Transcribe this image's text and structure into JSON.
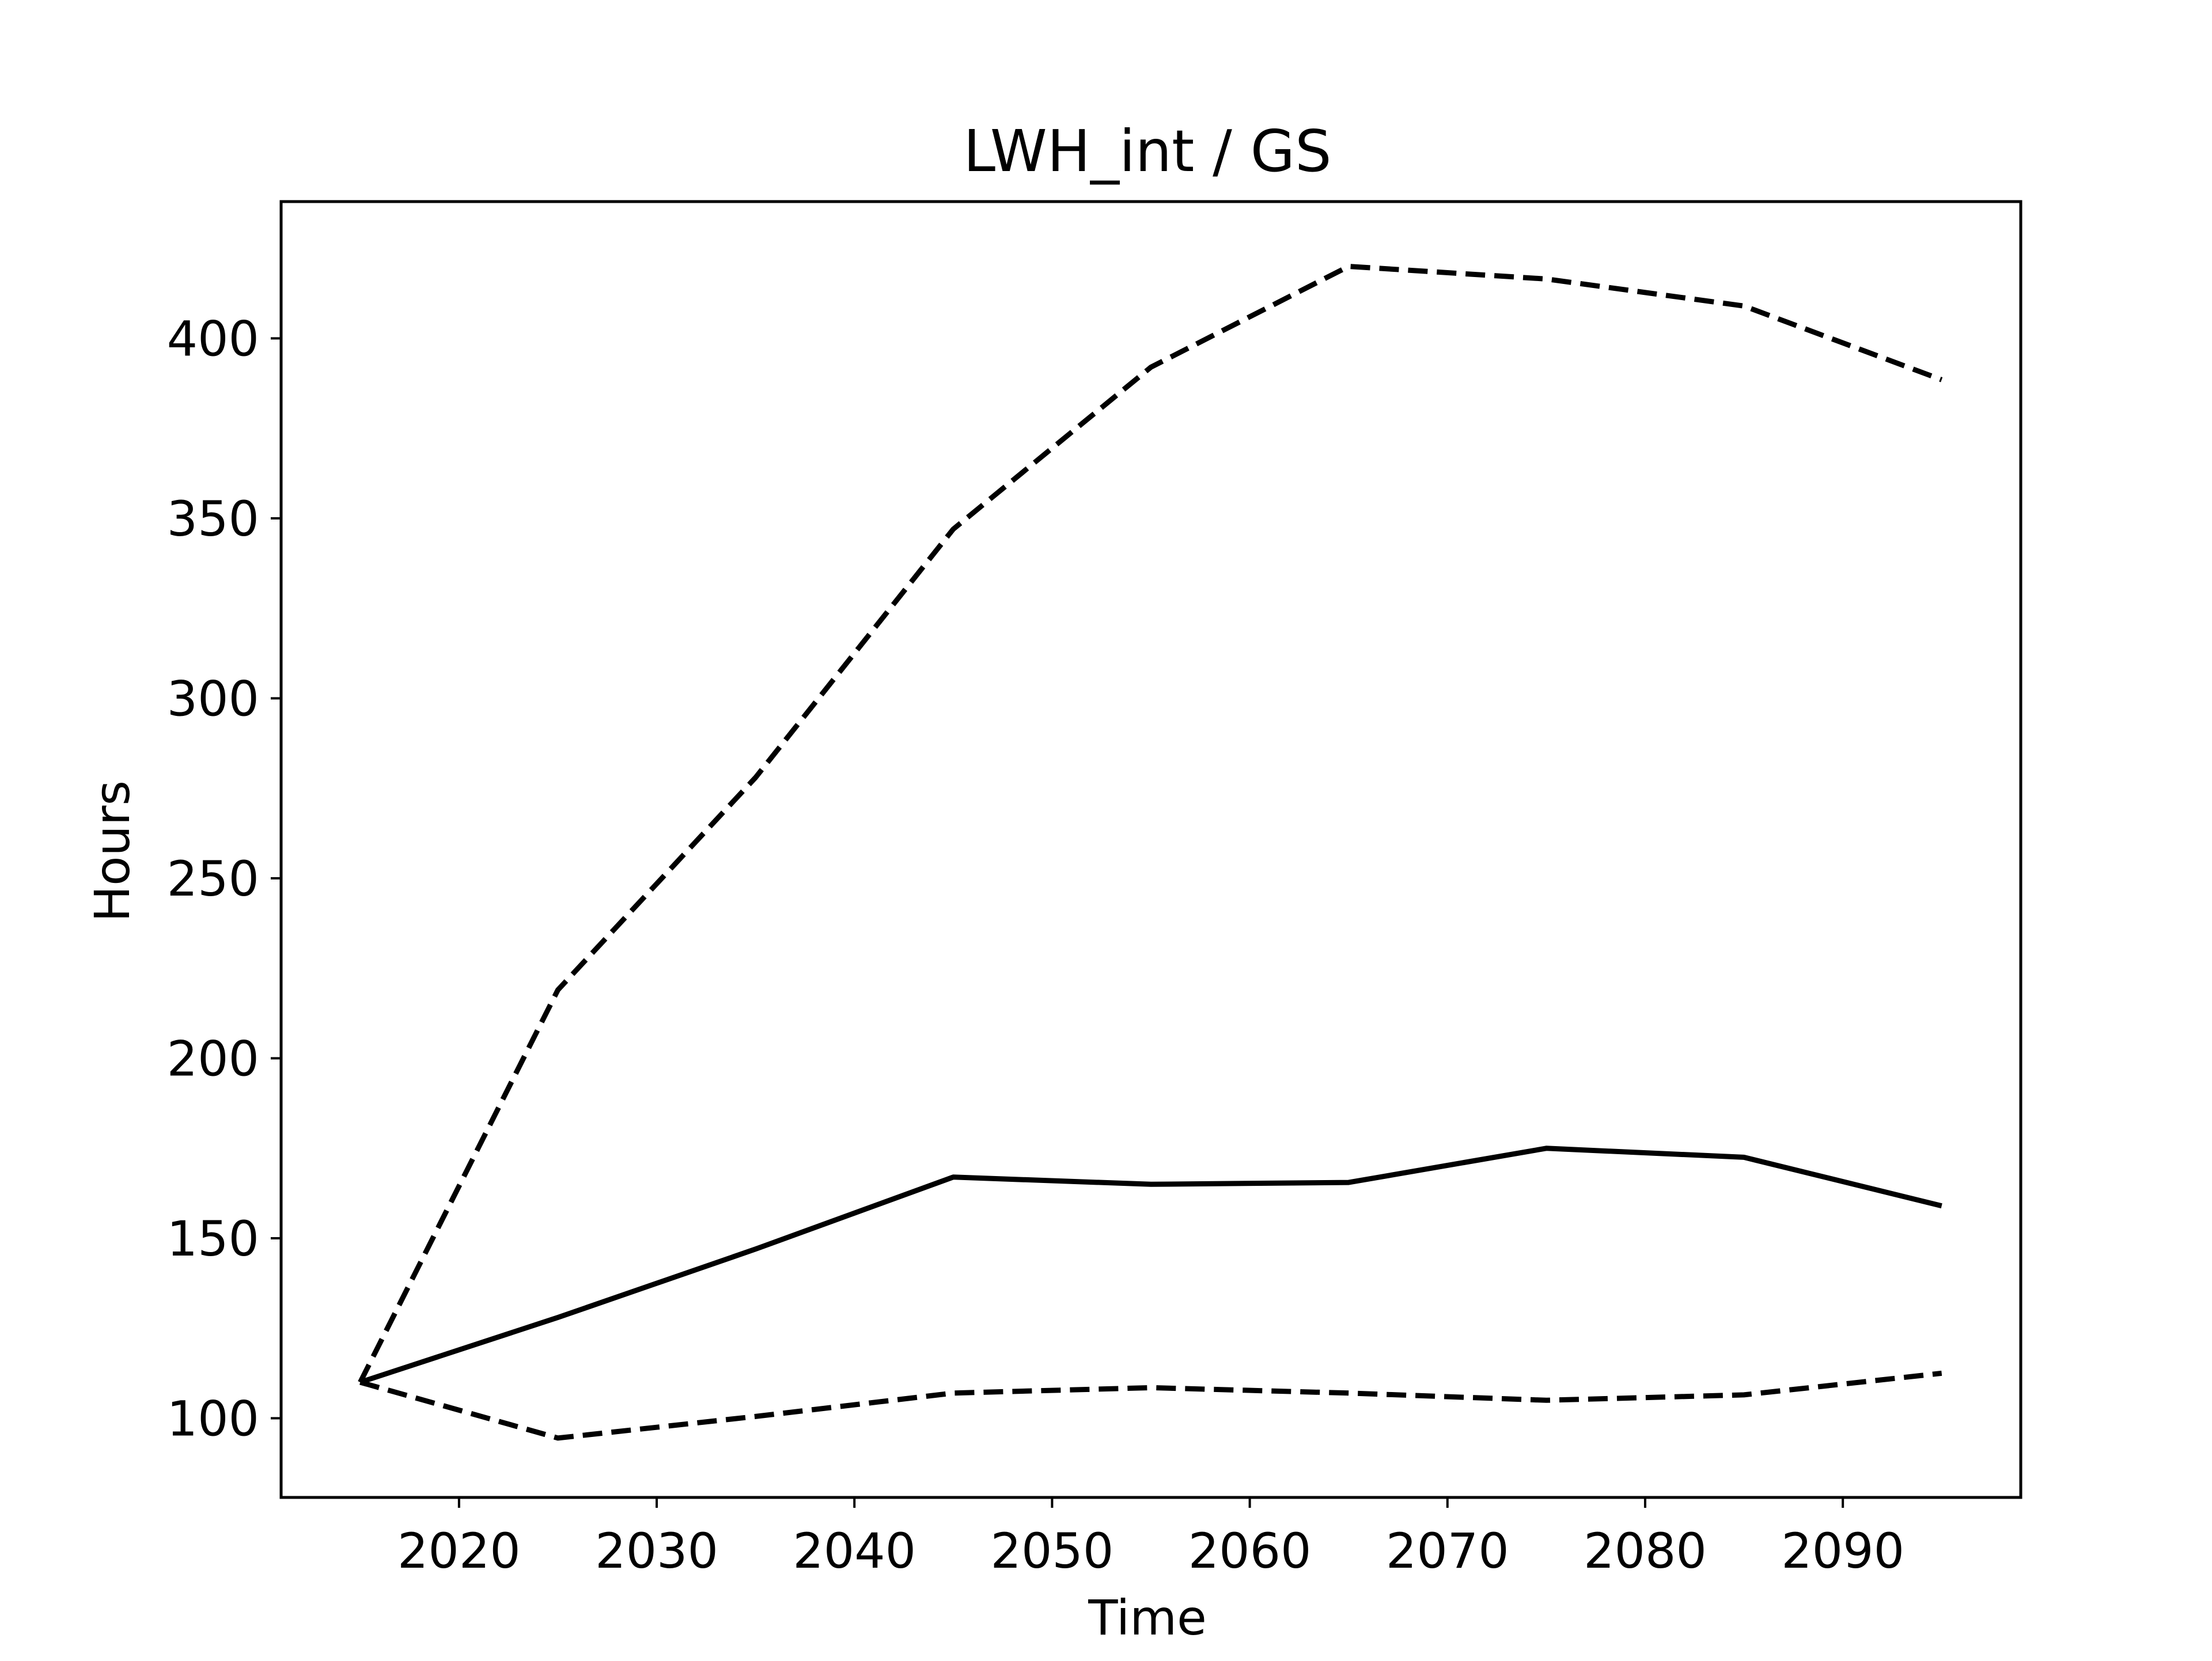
{
  "chart_data": {
    "type": "line",
    "title": "LWH_int / GS",
    "xlabel": "Time",
    "ylabel": "Hours",
    "xlim": [
      2011,
      2099
    ],
    "ylim": [
      78,
      438
    ],
    "xticks": [
      2020,
      2030,
      2040,
      2050,
      2060,
      2070,
      2080,
      2090
    ],
    "yticks": [
      100,
      150,
      200,
      250,
      300,
      350,
      400
    ],
    "grid": false,
    "legend": false,
    "x": [
      2015,
      2025,
      2035,
      2045,
      2055,
      2065,
      2075,
      2085,
      2095
    ],
    "series": [
      {
        "style": "solid",
        "color": "#000000",
        "values": [
          110,
          128,
          147,
          167,
          165,
          165.5,
          175,
          172.5,
          159
        ]
      },
      {
        "style": "dashed",
        "color": "#000000",
        "values": [
          110,
          219,
          278,
          347,
          392,
          420,
          416.5,
          409,
          388.5
        ]
      },
      {
        "style": "dashed",
        "color": "#000000",
        "values": [
          110,
          94.5,
          100.5,
          107,
          108.5,
          107,
          105,
          106.5,
          112.5
        ]
      }
    ]
  }
}
